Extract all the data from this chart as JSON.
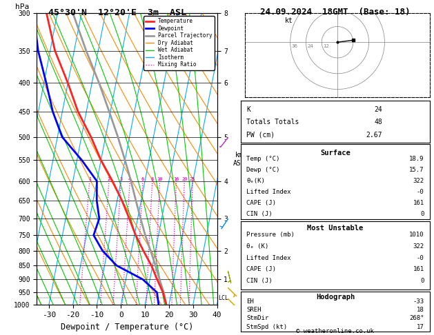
{
  "title_left": "45°30'N  12°20'E  3m  ASL",
  "title_right": "24.09.2024  18GMT  (Base: 18)",
  "xlabel": "Dewpoint / Temperature (°C)",
  "isotherm_color": "#00aaff",
  "dry_adiabat_color": "#ff8800",
  "wet_adiabat_color": "#00cc00",
  "mixing_ratio_color": "#ff00cc",
  "temp_color": "#ff2222",
  "dewp_color": "#0000ff",
  "parcel_color": "#999999",
  "pressure_levels": [
    300,
    350,
    400,
    450,
    500,
    550,
    600,
    650,
    700,
    750,
    800,
    850,
    900,
    950,
    1000
  ],
  "T_MIN": -35,
  "T_MAX": 40,
  "SKEW": 45.0,
  "temp_data": {
    "pressure": [
      1000,
      950,
      900,
      850,
      800,
      750,
      700,
      650,
      600,
      550,
      500,
      450,
      400,
      350,
      300
    ],
    "temp": [
      18.9,
      16.5,
      13.0,
      9.5,
      5.0,
      0.5,
      -3.5,
      -8.0,
      -13.5,
      -20.0,
      -26.0,
      -33.5,
      -40.0,
      -48.0,
      -54.5
    ]
  },
  "dewp_data": {
    "pressure": [
      1000,
      950,
      900,
      850,
      800,
      750,
      700,
      650,
      600,
      550,
      500,
      450,
      400,
      350,
      300
    ],
    "temp": [
      15.7,
      14.0,
      7.0,
      -5.0,
      -12.0,
      -17.0,
      -16.0,
      -18.5,
      -20.0,
      -28.0,
      -38.0,
      -44.0,
      -49.0,
      -55.0,
      -60.0
    ]
  },
  "parcel_data": {
    "pressure": [
      1000,
      950,
      900,
      850,
      800,
      750,
      700,
      650,
      600,
      550,
      500,
      450,
      400,
      350,
      300
    ],
    "temp": [
      18.9,
      16.8,
      14.0,
      11.2,
      8.0,
      4.5,
      1.2,
      -2.2,
      -5.8,
      -10.0,
      -14.8,
      -20.5,
      -27.0,
      -35.0,
      -43.5
    ]
  },
  "lcl_pressure": 972,
  "mixing_ratio_lines": [
    1,
    2,
    3,
    4,
    6,
    8,
    10,
    16,
    20,
    25
  ],
  "km_label_p": [
    900,
    800,
    700,
    600,
    500,
    400,
    350,
    300
  ],
  "km_label_v": [
    1,
    2,
    3,
    4,
    5,
    6,
    7,
    8
  ],
  "legend_items": [
    {
      "label": "Temperature",
      "color": "#ff2222",
      "ls": "-",
      "lw": 2
    },
    {
      "label": "Dewpoint",
      "color": "#0000ff",
      "ls": "-",
      "lw": 2
    },
    {
      "label": "Parcel Trajectory",
      "color": "#999999",
      "ls": "-",
      "lw": 2
    },
    {
      "label": "Dry Adiabat",
      "color": "#ff8800",
      "ls": "-",
      "lw": 1
    },
    {
      "label": "Wet Adiabat",
      "color": "#00cc00",
      "ls": "-",
      "lw": 1
    },
    {
      "label": "Isotherm",
      "color": "#00aaff",
      "ls": "-",
      "lw": 1
    },
    {
      "label": "Mixing Ratio",
      "color": "#ff00cc",
      "ls": ":",
      "lw": 1
    }
  ],
  "stats": {
    "K": 24,
    "TotTot": 48,
    "PW": "2.67",
    "surf_temp": "18.9",
    "surf_dewp": "15.7",
    "surf_thetae": "322",
    "lifted_index": "-0",
    "CAPE": "161",
    "CIN": "0",
    "mu_pressure": "1010",
    "mu_thetae": "322",
    "mu_li": "-0",
    "mu_CAPE": "161",
    "mu_CIN": "0",
    "EH": "-33",
    "SREH": "18",
    "StmDir": "268°",
    "StmSpd": "17"
  },
  "wind_data": [
    {
      "pressure": 975,
      "u": -2,
      "v": 2,
      "color": "#ddaa00"
    },
    {
      "pressure": 930,
      "u": -3,
      "v": 3,
      "color": "#ddaa00"
    },
    {
      "pressure": 870,
      "u": -1,
      "v": 4,
      "color": "#88aa00"
    },
    {
      "pressure": 700,
      "u": 4,
      "v": 6,
      "color": "#2299ff"
    },
    {
      "pressure": 500,
      "u": 7,
      "v": 9,
      "color": "#bb44cc"
    }
  ]
}
